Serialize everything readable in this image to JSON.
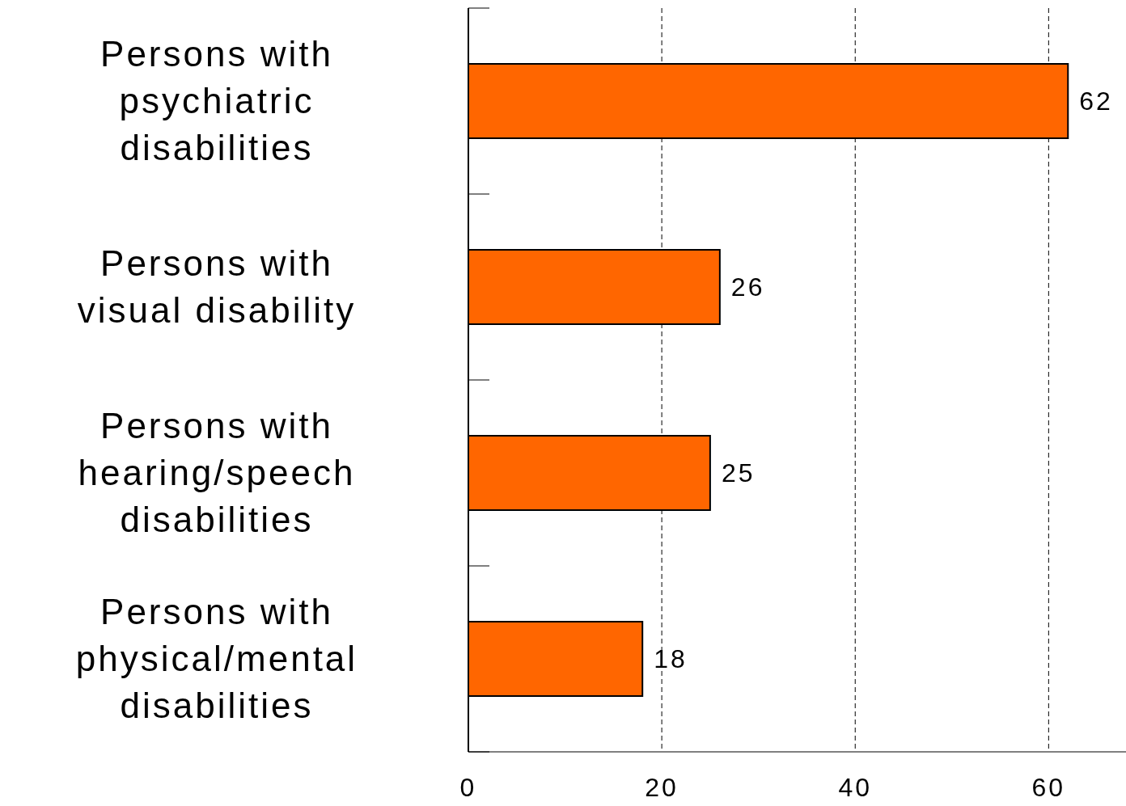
{
  "chart_data": {
    "type": "bar",
    "orientation": "horizontal",
    "categories": [
      "Persons with psychiatric disabilities",
      "Persons with visual disability",
      "Persons with hearing/speech disabilities",
      "Persons with physical/mental disabilities"
    ],
    "values": [
      62,
      26,
      25,
      18
    ],
    "color": "#ff6600",
    "xlim": [
      0,
      68
    ],
    "xticks": [
      0,
      20,
      40,
      60
    ],
    "grid": "x",
    "data_labels": true
  }
}
